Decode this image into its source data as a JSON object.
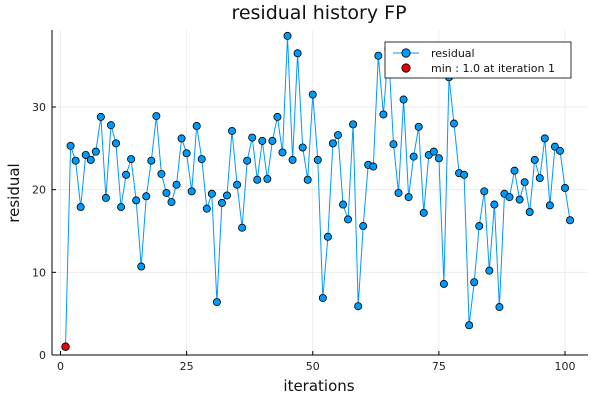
{
  "chart_data": {
    "type": "scatter",
    "title": "residual history FP",
    "xlabel": "iterations",
    "ylabel": "residual",
    "xlim": [
      0,
      101
    ],
    "ylim": [
      0,
      39
    ],
    "xticks": [
      "0",
      "25",
      "50",
      "75",
      "100"
    ],
    "yticks": [
      "0",
      "10",
      "20",
      "30"
    ],
    "grid": true,
    "legend_position": "top-right",
    "series": [
      {
        "name": "residual",
        "color": "#009AF9",
        "style": "line+markers",
        "x": [
          1,
          2,
          3,
          4,
          5,
          6,
          7,
          8,
          9,
          10,
          11,
          12,
          13,
          14,
          15,
          16,
          17,
          18,
          19,
          20,
          21,
          22,
          23,
          24,
          25,
          26,
          27,
          28,
          29,
          30,
          31,
          32,
          33,
          34,
          35,
          36,
          37,
          38,
          39,
          40,
          41,
          42,
          43,
          44,
          45,
          46,
          47,
          48,
          49,
          50,
          51,
          52,
          53,
          54,
          55,
          56,
          57,
          58,
          59,
          60,
          61,
          62,
          63,
          64,
          65,
          66,
          67,
          68,
          69,
          70,
          71,
          72,
          73,
          74,
          75,
          76,
          77,
          78,
          79,
          80,
          81,
          82,
          83,
          84,
          85,
          86,
          87,
          88,
          89,
          90,
          91,
          92,
          93,
          94,
          95,
          96,
          97,
          98,
          99,
          100,
          101
        ],
        "values": [
          1.0,
          25.3,
          23.5,
          17.9,
          24.2,
          23.6,
          24.6,
          28.8,
          19.0,
          27.8,
          25.6,
          17.9,
          21.8,
          23.7,
          18.7,
          10.7,
          19.2,
          23.5,
          28.9,
          21.9,
          19.6,
          18.5,
          20.6,
          26.2,
          24.4,
          19.8,
          27.7,
          23.7,
          17.7,
          19.5,
          6.4,
          18.4,
          19.3,
          27.1,
          20.6,
          15.4,
          23.5,
          26.3,
          21.2,
          25.9,
          21.3,
          25.9,
          28.8,
          24.5,
          38.6,
          23.6,
          36.5,
          25.1,
          21.2,
          31.5,
          23.6,
          6.9,
          14.3,
          25.6,
          26.6,
          18.2,
          16.4,
          27.9,
          5.9,
          15.6,
          23.0,
          22.8,
          36.2,
          29.1,
          37.0,
          25.5,
          19.6,
          30.9,
          19.1,
          24.0,
          27.6,
          17.2,
          24.2,
          24.6,
          23.8,
          8.6,
          33.6,
          28.0,
          22.0,
          21.8,
          3.6,
          8.8,
          15.6,
          19.8,
          10.2,
          18.2,
          5.8,
          19.5,
          19.1,
          22.3,
          18.8,
          20.9,
          17.3,
          23.6,
          21.4,
          26.2,
          18.1,
          25.2,
          24.7,
          20.2,
          16.3
        ]
      },
      {
        "name": "min : 1.0 at iteration 1",
        "color": "#E8000B",
        "style": "markers",
        "x": [
          1
        ],
        "values": [
          1.0
        ]
      }
    ]
  }
}
